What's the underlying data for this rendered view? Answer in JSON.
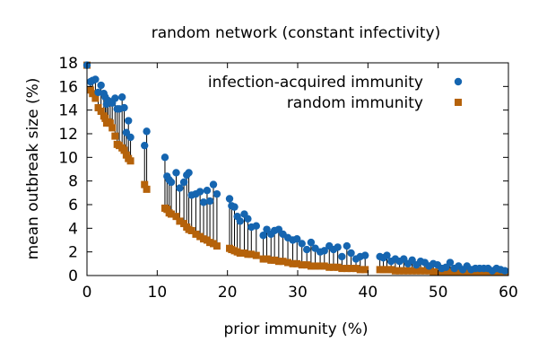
{
  "chart_data": {
    "type": "scatter",
    "title": "random network (constant infectivity)",
    "xlabel": "prior immunity (%)",
    "ylabel": "mean outbreak size (%)",
    "xlim": [
      0,
      60
    ],
    "ylim": [
      0,
      18
    ],
    "xticks": [
      0,
      10,
      20,
      30,
      40,
      50,
      60
    ],
    "yticks": [
      0,
      2,
      4,
      6,
      8,
      10,
      12,
      14,
      16,
      18
    ],
    "grid": false,
    "legend_position": "top-right",
    "colors": {
      "acquired": "#1565b0",
      "random": "#b5620a",
      "connector": "#000000"
    },
    "series": [
      {
        "name": "infection-acquired immunity",
        "marker": "circle",
        "x": [
          0,
          0.5,
          0.8,
          1.2,
          1.6,
          2.0,
          2.4,
          2.6,
          2.8,
          3.0,
          3.3,
          3.6,
          4.0,
          4.3,
          4.6,
          5.0,
          5.3,
          5.6,
          5.9,
          6.2,
          8.2,
          8.5,
          11.1,
          11.4,
          11.7,
          12.0,
          12.7,
          13.2,
          13.8,
          14.2,
          14.5,
          14.9,
          15.5,
          16.1,
          16.6,
          17.1,
          17.5,
          18.0,
          18.5,
          20.3,
          20.6,
          21.0,
          21.4,
          21.8,
          22.4,
          22.9,
          23.4,
          24.1,
          25.1,
          25.6,
          26.2,
          26.7,
          27.3,
          27.9,
          28.6,
          29.3,
          29.9,
          30.6,
          31.3,
          31.9,
          32.5,
          33.2,
          33.8,
          34.5,
          35.1,
          35.7,
          36.3,
          37.0,
          37.6,
          38.3,
          38.9,
          39.6,
          41.7,
          42.2,
          42.7,
          43.3,
          43.9,
          44.5,
          45.1,
          45.7,
          46.3,
          46.9,
          47.5,
          48.1,
          48.7,
          49.3,
          49.9,
          50.5,
          51.1,
          51.7,
          52.3,
          52.9,
          53.5,
          54.1,
          54.7,
          55.3,
          55.9,
          56.5,
          57.1,
          57.7,
          58.3,
          58.9,
          59.5
        ],
        "y": [
          17.8,
          16.4,
          16.5,
          16.6,
          15.5,
          16.1,
          15.4,
          15.1,
          14.5,
          14.8,
          14.7,
          14.6,
          15.0,
          14.1,
          14.1,
          15.1,
          14.2,
          12.1,
          13.1,
          11.7,
          11.0,
          12.2,
          10.0,
          8.4,
          8.1,
          7.9,
          8.7,
          7.4,
          7.9,
          8.5,
          8.7,
          6.8,
          6.9,
          7.1,
          6.2,
          7.2,
          6.3,
          7.7,
          6.9,
          6.5,
          5.9,
          5.8,
          5.0,
          4.6,
          5.2,
          4.8,
          4.1,
          4.2,
          3.4,
          3.9,
          3.5,
          3.8,
          3.9,
          3.5,
          3.2,
          3.0,
          3.1,
          2.7,
          2.2,
          2.8,
          2.3,
          2.0,
          2.1,
          2.5,
          2.2,
          2.4,
          1.6,
          2.5,
          1.9,
          1.4,
          1.6,
          1.7,
          1.6,
          1.5,
          1.7,
          1.2,
          1.4,
          1.2,
          1.4,
          1.0,
          1.3,
          0.9,
          1.2,
          1.1,
          0.8,
          1.0,
          0.9,
          0.6,
          0.7,
          1.1,
          0.6,
          0.8,
          0.5,
          0.8,
          0.5,
          0.6,
          0.6,
          0.6,
          0.6,
          0.4,
          0.6,
          0.5,
          0.4
        ]
      },
      {
        "name": "random immunity",
        "marker": "square",
        "x": [
          0,
          0.5,
          0.8,
          1.2,
          1.6,
          2.0,
          2.4,
          2.6,
          2.8,
          3.0,
          3.3,
          3.6,
          4.0,
          4.3,
          4.6,
          5.0,
          5.3,
          5.6,
          5.9,
          6.2,
          8.2,
          8.5,
          11.1,
          11.4,
          11.7,
          12.0,
          12.7,
          13.2,
          13.8,
          14.2,
          14.5,
          14.9,
          15.5,
          16.1,
          16.6,
          17.1,
          17.5,
          18.0,
          18.5,
          20.3,
          20.6,
          21.0,
          21.4,
          21.8,
          22.4,
          22.9,
          23.4,
          24.1,
          25.1,
          25.6,
          26.2,
          26.7,
          27.3,
          27.9,
          28.6,
          29.3,
          29.9,
          30.6,
          31.3,
          31.9,
          32.5,
          33.2,
          33.8,
          34.5,
          35.1,
          35.7,
          36.3,
          37.0,
          37.6,
          38.3,
          38.9,
          39.6,
          41.7,
          42.2,
          42.7,
          43.3,
          43.9,
          44.5,
          45.1,
          45.7,
          46.3,
          46.9,
          47.5,
          48.1,
          48.7,
          49.3,
          49.9,
          50.5,
          51.1,
          51.7,
          52.3,
          52.9,
          53.5,
          54.1,
          54.7,
          55.3,
          55.9,
          56.5,
          57.1,
          57.7,
          58.3,
          58.9,
          59.5
        ],
        "y": [
          17.8,
          15.7,
          15.4,
          15.0,
          14.2,
          13.9,
          13.5,
          13.3,
          12.9,
          13.0,
          12.9,
          12.5,
          11.8,
          11.1,
          11.0,
          10.8,
          10.6,
          10.2,
          9.9,
          9.7,
          7.7,
          7.3,
          5.7,
          5.6,
          5.3,
          5.2,
          5.0,
          4.6,
          4.4,
          4.1,
          3.9,
          3.8,
          3.5,
          3.3,
          3.1,
          3.0,
          2.8,
          2.7,
          2.5,
          2.3,
          2.2,
          2.1,
          2.0,
          1.9,
          1.9,
          1.8,
          1.8,
          1.7,
          1.4,
          1.4,
          1.3,
          1.3,
          1.2,
          1.2,
          1.1,
          1.0,
          1.0,
          0.9,
          0.9,
          0.8,
          0.8,
          0.8,
          0.8,
          0.7,
          0.7,
          0.7,
          0.6,
          0.6,
          0.6,
          0.6,
          0.5,
          0.5,
          0.5,
          0.5,
          0.5,
          0.5,
          0.4,
          0.4,
          0.4,
          0.4,
          0.4,
          0.4,
          0.4,
          0.4,
          0.4,
          0.3,
          0.3,
          0.3,
          0.3,
          0.3,
          0.3,
          0.3,
          0.3,
          0.3,
          0.3,
          0.3,
          0.3,
          0.3,
          0.3,
          0.3,
          0.3,
          0.3,
          0.3
        ]
      }
    ]
  }
}
